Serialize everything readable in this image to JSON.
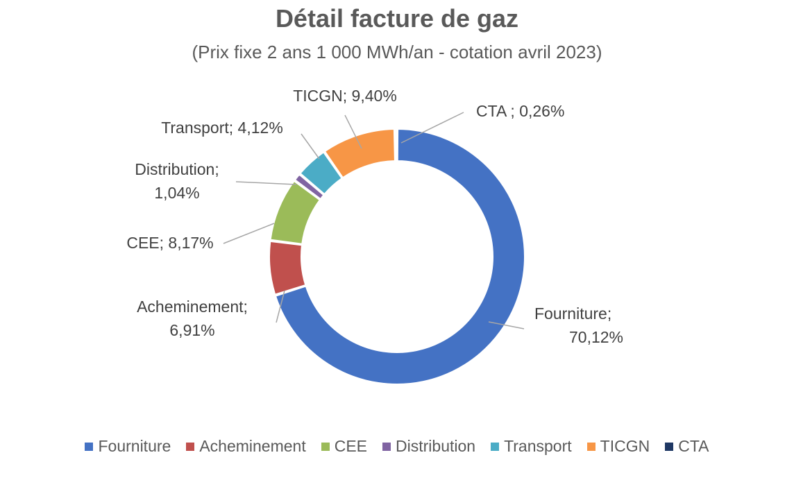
{
  "chart_data": {
    "type": "pie",
    "title": "Détail facture de gaz",
    "subtitle": "(Prix fixe 2 ans 1 000 MWh/an -  cotation avril 2023)",
    "legend_position": "bottom",
    "categories": [
      "Fourniture",
      "Acheminement",
      "CEE",
      "Distribution",
      "Transport",
      "TICGN",
      "CTA"
    ],
    "values": [
      70.12,
      6.91,
      8.17,
      1.04,
      4.12,
      9.4,
      0.26
    ],
    "colors": [
      "#4472C4",
      "#C0504D",
      "#9BBB59",
      "#8064A2",
      "#4BACC6",
      "#F79646",
      "#1F3864"
    ],
    "labels": [
      [
        "Fourniture;",
        "70,12%"
      ],
      [
        "Acheminement;",
        "6,91%"
      ],
      [
        "CEE; 8,17%"
      ],
      [
        "Distribution;",
        "1,04%"
      ],
      [
        "Transport; 4,12%"
      ],
      [
        "TICGN; 9,40%"
      ],
      [
        "CTA ; 0,26%"
      ]
    ]
  }
}
